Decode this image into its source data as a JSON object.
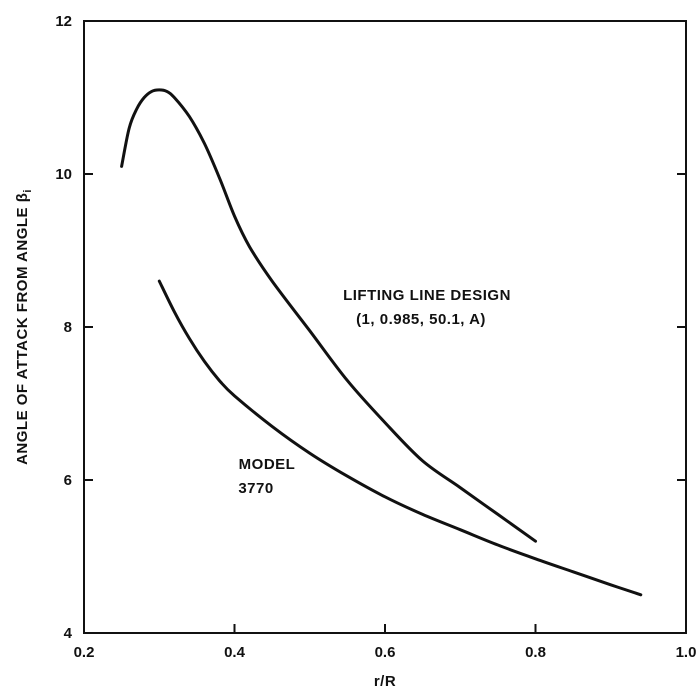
{
  "chart_data": {
    "type": "line",
    "title": "",
    "xlabel": "r/R",
    "ylabel": "ANGLE OF ATTACK FROM ANGLE β",
    "ylabel_subscript": "i",
    "xlim": [
      0.2,
      1.0
    ],
    "ylim": [
      4,
      12
    ],
    "x_ticks": [
      "0.2",
      "0.4",
      "0.6",
      "0.8",
      "1.0"
    ],
    "y_ticks": [
      "4",
      "6",
      "8",
      "10",
      "12"
    ],
    "grid": false,
    "series": [
      {
        "name": "LIFTING LINE DESIGN (1, 0.985, 50.1, A)",
        "label_lines": [
          "LIFTING LINE DESIGN",
          "(1, 0.985, 50.1, A)"
        ],
        "x": [
          0.25,
          0.26,
          0.27,
          0.28,
          0.29,
          0.3,
          0.31,
          0.32,
          0.34,
          0.36,
          0.38,
          0.4,
          0.42,
          0.45,
          0.5,
          0.55,
          0.6,
          0.65,
          0.7,
          0.75,
          0.8
        ],
        "y": [
          10.1,
          10.6,
          10.85,
          11.0,
          11.08,
          11.1,
          11.08,
          11.0,
          10.75,
          10.4,
          9.95,
          9.45,
          9.05,
          8.6,
          7.95,
          7.3,
          6.75,
          6.25,
          5.9,
          5.55,
          5.2
        ]
      },
      {
        "name": "MODEL 3770",
        "label_lines": [
          "MODEL",
          "3770"
        ],
        "x": [
          0.3,
          0.32,
          0.34,
          0.36,
          0.38,
          0.4,
          0.45,
          0.5,
          0.55,
          0.6,
          0.65,
          0.7,
          0.75,
          0.8,
          0.85,
          0.9,
          0.94
        ],
        "y": [
          8.6,
          8.2,
          7.85,
          7.55,
          7.3,
          7.1,
          6.7,
          6.35,
          6.05,
          5.78,
          5.55,
          5.35,
          5.15,
          4.97,
          4.8,
          4.63,
          4.5
        ]
      }
    ]
  }
}
